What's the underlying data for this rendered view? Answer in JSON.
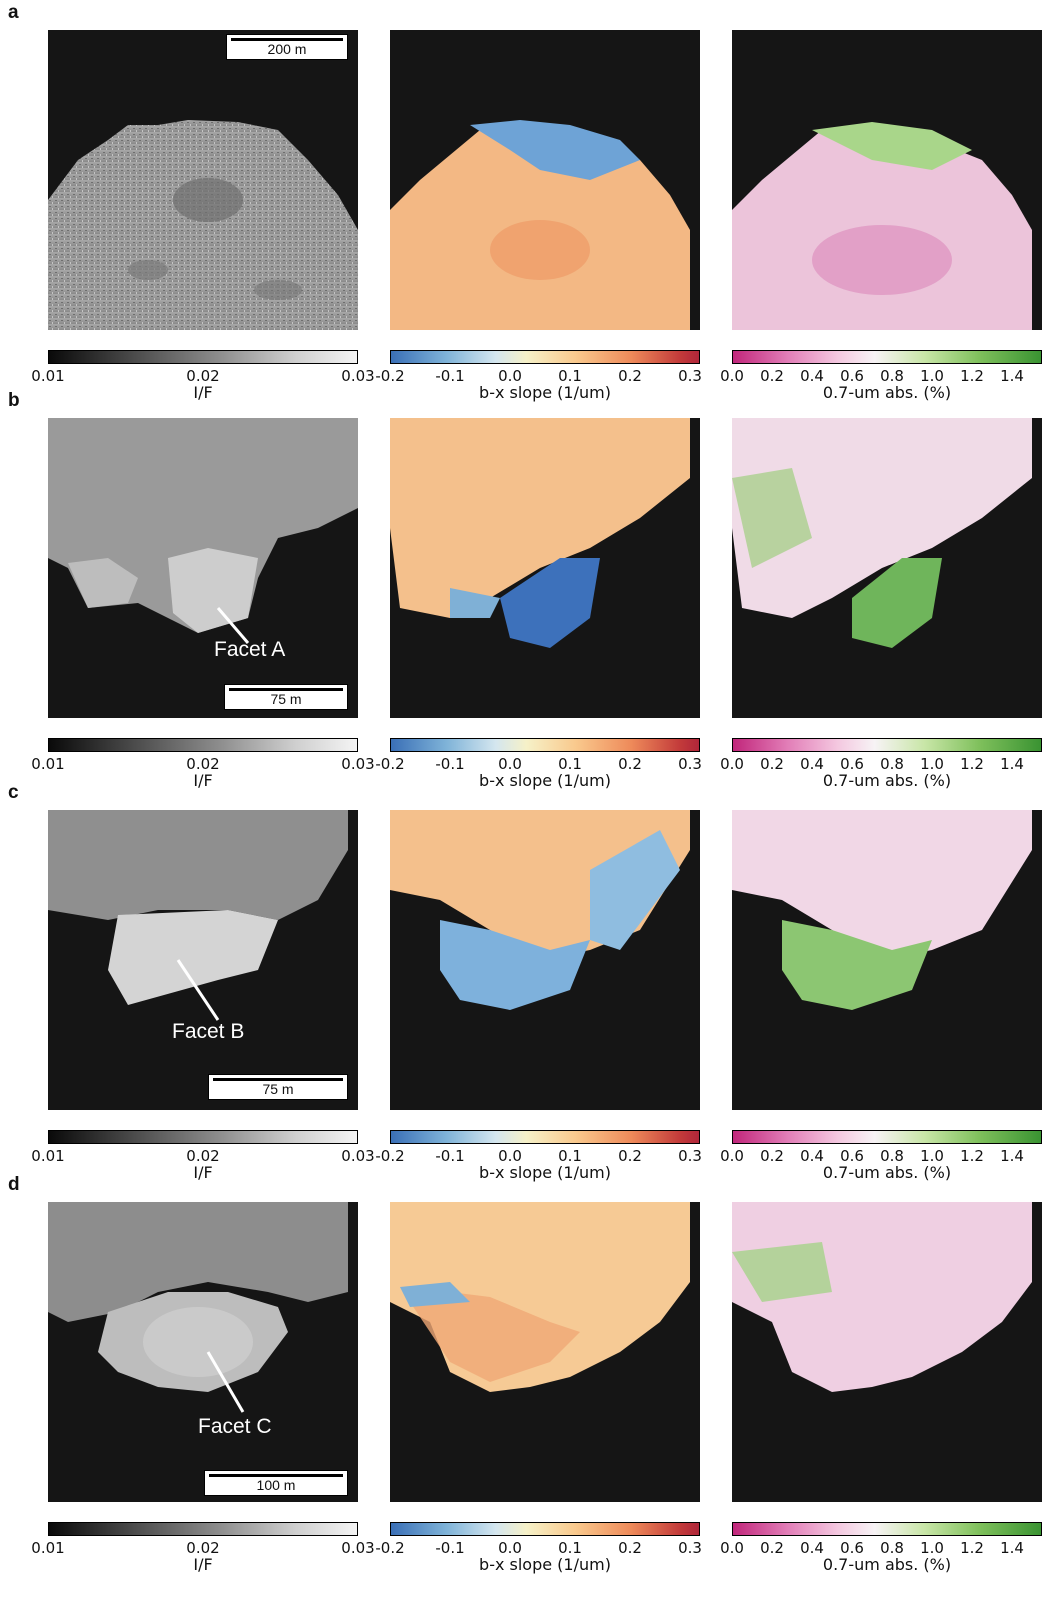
{
  "rows": [
    {
      "letter": "a",
      "scale_label": "200 m",
      "callout": ""
    },
    {
      "letter": "b",
      "scale_label": "75 m",
      "callout": "Facet A"
    },
    {
      "letter": "c",
      "scale_label": "75 m",
      "callout": "Facet B"
    },
    {
      "letter": "d",
      "scale_label": "100 m",
      "callout": "Facet C"
    }
  ],
  "colorbars": {
    "if": {
      "label": "I/F",
      "ticks": [
        "0.01",
        "0.02",
        "0.03"
      ],
      "colors": [
        "#0a0a0a",
        "#f4f4f4"
      ]
    },
    "slope": {
      "label": "b-x slope (1/um)",
      "ticks": [
        "-0.2",
        "-0.1",
        "0.0",
        "0.1",
        "0.2",
        "0.3"
      ],
      "colors": [
        "#3a6fb6",
        "#f6f1c8",
        "#b0263a"
      ]
    },
    "abs": {
      "label": "0.7-um abs. (%)",
      "ticks": [
        "0.0",
        "0.2",
        "0.4",
        "0.6",
        "0.8",
        "1.0",
        "1.2",
        "1.4"
      ],
      "colors": [
        "#c1267b",
        "#f7f3f5",
        "#3a9332"
      ]
    }
  }
}
